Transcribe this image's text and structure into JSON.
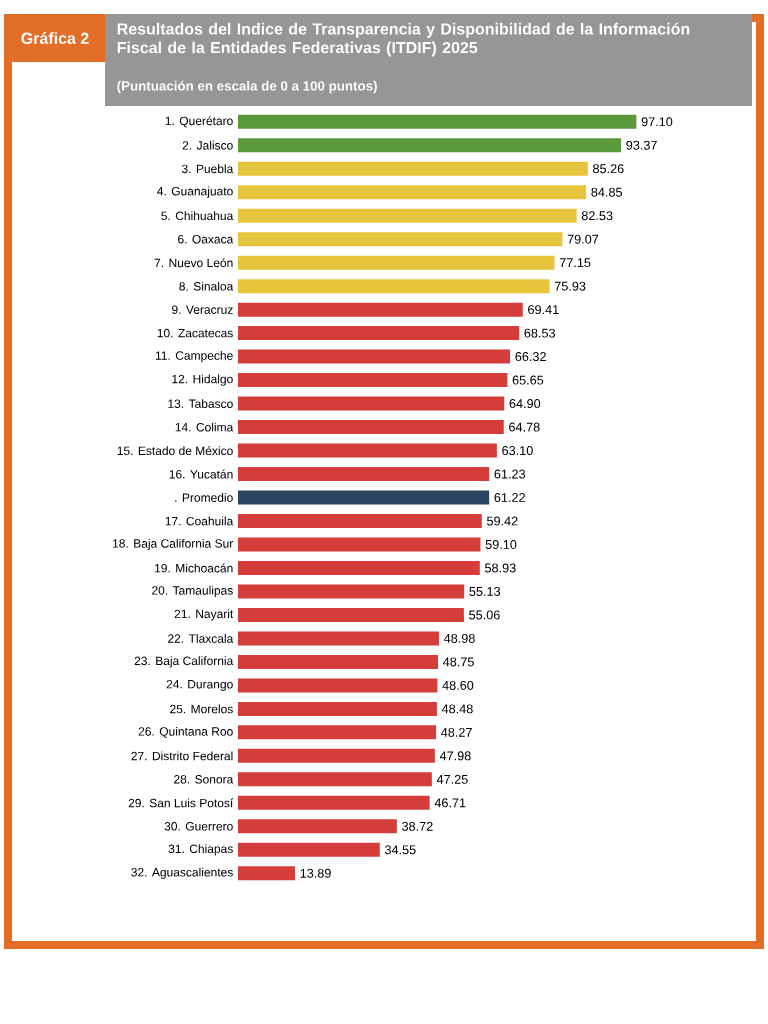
{
  "chart_data": {
    "type": "bar",
    "orientation": "horizontal",
    "title": "Resultados del Indice de Transparencia y Disponibilidad de la Información Fiscal de la Entidades Federativas (ITDIF) 2025",
    "subtitle": "(Puntuación  en escala de 0 a 100 puntos)",
    "annotations": [
      "Gráfica 2"
    ],
    "categories": [
      "1. Querétaro",
      "2. Jalisco",
      "3. Puebla",
      "4. Guanajuato",
      "5. Chihuahua",
      "6. Oaxaca",
      "7. Nuevo León",
      "8. Sinaloa",
      "9. Veracruz",
      "10. Zacatecas",
      "11. Campeche",
      "12. Hidalgo",
      "13. Tabasco",
      "14. Colima",
      "15. Estado de México",
      "16. Yucatán",
      ". Promedio",
      "17. Coahuila",
      "18. Baja California Sur",
      "19. Michoacán",
      "20. Tamaulipas",
      "21. Nayarit",
      "22. Tlaxcala",
      "23. Baja California",
      "24. Durango",
      "25. Morelos",
      "26. Quintana Roo",
      "27. Distrito Federal",
      "28. Sonora",
      "29. San Luis Potosí",
      "30. Guerrero",
      "31. Chiapas",
      "32. Aguascalientes"
    ],
    "values": [
      97.1,
      93.37,
      85.26,
      84.85,
      82.53,
      79.07,
      77.15,
      75.93,
      69.41,
      68.53,
      66.32,
      65.65,
      64.9,
      64.78,
      63.1,
      61.23,
      61.22,
      59.42,
      59.1,
      58.93,
      55.13,
      55.06,
      48.98,
      48.75,
      48.6,
      48.48,
      48.27,
      47.98,
      47.25,
      46.71,
      38.72,
      34.55,
      13.89
    ],
    "value_labels": [
      "97.10",
      "93.37",
      "85.26",
      "84.85",
      "82.53",
      "79.07",
      "77.15",
      "75.93",
      "69.41",
      "68.53",
      "66.32",
      "65.65",
      "64.90",
      "64.78",
      "63.10",
      "61.23",
      "61.22",
      "59.42",
      "59.10",
      "58.93",
      "55.13",
      "55.06",
      "48.98",
      "48.75",
      "48.60",
      "48.48",
      "48.27",
      "47.98",
      "47.25",
      "46.71",
      "38.72",
      "34.55",
      "13.89"
    ],
    "colors": [
      "#5a9a3c",
      "#5a9a3c",
      "#e6c43c",
      "#e6c43c",
      "#e6c43c",
      "#e6c43c",
      "#e6c43c",
      "#e6c43c",
      "#d33d3a",
      "#d33d3a",
      "#d33d3a",
      "#d33d3a",
      "#d33d3a",
      "#d33d3a",
      "#d33d3a",
      "#d33d3a",
      "#2b4560",
      "#d33d3a",
      "#d33d3a",
      "#d33d3a",
      "#d33d3a",
      "#d33d3a",
      "#d33d3a",
      "#d33d3a",
      "#d33d3a",
      "#d33d3a",
      "#d33d3a",
      "#d33d3a",
      "#d33d3a",
      "#d33d3a",
      "#d33d3a",
      "#d33d3a",
      "#d33d3a"
    ]
  }
}
